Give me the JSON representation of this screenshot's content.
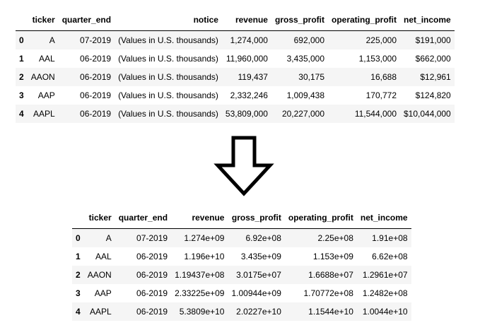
{
  "top_table": {
    "columns": [
      "",
      "ticker",
      "quarter_end",
      "notice",
      "revenue",
      "gross_profit",
      "operating_profit",
      "net_income"
    ],
    "rows": [
      [
        "0",
        "A",
        "07-2019",
        "(Values in U.S. thousands)",
        "1,274,000",
        "692,000",
        "225,000",
        "$191,000"
      ],
      [
        "1",
        "AAL",
        "06-2019",
        "(Values in U.S. thousands)",
        "11,960,000",
        "3,435,000",
        "1,153,000",
        "$662,000"
      ],
      [
        "2",
        "AAON",
        "06-2019",
        "(Values in U.S. thousands)",
        "119,437",
        "30,175",
        "16,688",
        "$12,961"
      ],
      [
        "3",
        "AAP",
        "06-2019",
        "(Values in U.S. thousands)",
        "2,332,246",
        "1,009,438",
        "170,772",
        "$124,820"
      ],
      [
        "4",
        "AAPL",
        "06-2019",
        "(Values in U.S. thousands)",
        "53,809,000",
        "20,227,000",
        "11,544,000",
        "$10,044,000"
      ]
    ]
  },
  "bottom_table": {
    "columns": [
      "",
      "ticker",
      "quarter_end",
      "revenue",
      "gross_profit",
      "operating_profit",
      "net_income"
    ],
    "rows": [
      [
        "0",
        "A",
        "07-2019",
        "1.274e+09",
        "6.92e+08",
        "2.25e+08",
        "1.91e+08"
      ],
      [
        "1",
        "AAL",
        "06-2019",
        "1.196e+10",
        "3.435e+09",
        "1.153e+09",
        "6.62e+08"
      ],
      [
        "2",
        "AAON",
        "06-2019",
        "1.19437e+08",
        "3.0175e+07",
        "1.6688e+07",
        "1.2961e+07"
      ],
      [
        "3",
        "AAP",
        "06-2019",
        "2.33225e+09",
        "1.00944e+09",
        "1.70772e+08",
        "1.2482e+08"
      ],
      [
        "4",
        "AAPL",
        "06-2019",
        "5.3809e+10",
        "2.0227e+10",
        "1.1544e+10",
        "1.0044e+10"
      ]
    ]
  },
  "colors": {
    "row_stripe": "#f5f5f5",
    "text": "#000000",
    "arrow_stroke": "#000000"
  },
  "icons": {
    "arrow": "down-arrow-icon"
  }
}
